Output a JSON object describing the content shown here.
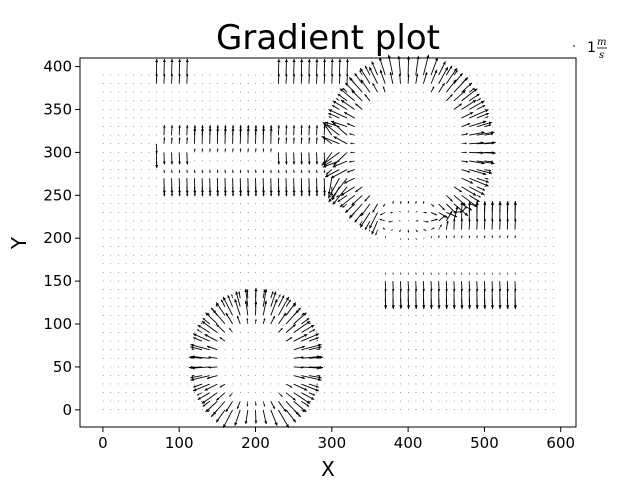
{
  "chart_data": {
    "type": "quiver",
    "title": "Gradient plot",
    "xlabel": "X",
    "ylabel": "Y",
    "xlim": [
      -30,
      620
    ],
    "ylim": [
      -20,
      410
    ],
    "xticks": [
      0,
      100,
      200,
      300,
      400,
      500,
      600
    ],
    "yticks": [
      0,
      50,
      100,
      150,
      200,
      250,
      300,
      350,
      400
    ],
    "grid": false,
    "arrow_color": "#000000",
    "sample_grid": {
      "x_start": 0,
      "x_stop": 590,
      "x_step": 10,
      "y_start": 0,
      "y_stop": 390,
      "y_step": 10
    },
    "field_features": [
      {
        "kind": "ring",
        "center": [
          400,
          305
        ],
        "inner_radius": 70,
        "outer_radius": 105
      },
      {
        "kind": "ring",
        "center": [
          200,
          55
        ],
        "inner_radius": 45,
        "outer_radius": 80
      },
      {
        "kind": "band",
        "x_range": [
          370,
          540
        ],
        "y_center": 180,
        "inner_half_height": 20,
        "outer_half_height": 60
      },
      {
        "kind": "band",
        "x_range": [
          80,
          320
        ],
        "y_center": 290,
        "inner_half_height": 10,
        "outer_half_height": 35
      },
      {
        "kind": "band",
        "x_range": [
          70,
          110
        ],
        "y_center": 345,
        "inner_half_height": 30,
        "outer_half_height": 55
      },
      {
        "kind": "band",
        "x_range": [
          230,
          320
        ],
        "y_center": 345,
        "inner_half_height": 30,
        "outer_half_height": 55
      }
    ],
    "quiver_key": {
      "value_text": "1",
      "unit_numerator": "m",
      "unit_denominator": "s",
      "position": "top-right"
    }
  }
}
